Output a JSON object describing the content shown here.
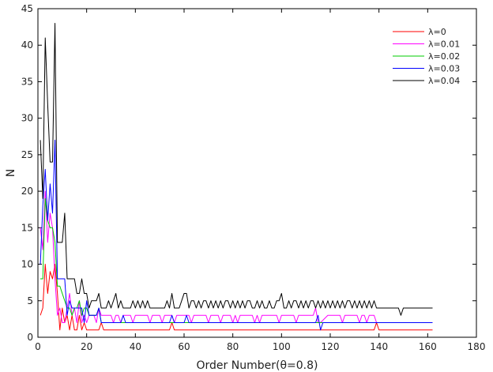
{
  "chart_data": {
    "type": "line",
    "title": "",
    "xlabel": "Order Number(θ=0.8)",
    "ylabel": "N",
    "xlim": [
      0,
      180
    ],
    "ylim": [
      0,
      45
    ],
    "xticks": [
      0,
      20,
      40,
      60,
      80,
      100,
      120,
      140,
      160,
      180
    ],
    "yticks": [
      0,
      5,
      10,
      15,
      20,
      25,
      30,
      35,
      40,
      45
    ],
    "grid": false,
    "legend_position": "top-right",
    "series": [
      {
        "name": "λ=0",
        "color": "#ff0000",
        "points": [
          [
            1,
            3
          ],
          [
            2,
            4
          ],
          [
            3,
            10
          ],
          [
            4,
            6
          ],
          [
            5,
            9
          ],
          [
            6,
            8
          ],
          [
            7,
            10
          ],
          [
            8,
            6
          ],
          [
            9,
            1
          ],
          [
            10,
            4
          ],
          [
            11,
            2
          ],
          [
            12,
            3
          ],
          [
            13,
            1
          ],
          [
            14,
            3
          ],
          [
            15,
            1
          ],
          [
            16,
            1
          ],
          [
            17,
            3
          ],
          [
            18,
            1
          ],
          [
            19,
            2
          ],
          [
            20,
            1
          ],
          [
            21,
            1
          ],
          [
            25,
            1
          ],
          [
            26,
            2
          ],
          [
            27,
            1
          ],
          [
            54,
            1
          ],
          [
            55,
            2
          ],
          [
            56,
            1
          ],
          [
            138,
            1
          ],
          [
            139,
            2
          ],
          [
            140,
            1
          ],
          [
            162,
            1
          ]
        ]
      },
      {
        "name": "λ=0.01",
        "color": "#ff00ff",
        "points": [
          [
            1,
            15
          ],
          [
            2,
            12
          ],
          [
            3,
            20
          ],
          [
            4,
            13
          ],
          [
            5,
            17
          ],
          [
            6,
            15
          ],
          [
            7,
            8
          ],
          [
            8,
            3
          ],
          [
            9,
            4
          ],
          [
            10,
            2
          ],
          [
            11,
            2
          ],
          [
            12,
            4
          ],
          [
            13,
            6
          ],
          [
            14,
            3
          ],
          [
            15,
            4
          ],
          [
            16,
            2
          ],
          [
            17,
            5
          ],
          [
            18,
            2
          ],
          [
            19,
            3
          ],
          [
            20,
            2
          ],
          [
            21,
            3
          ],
          [
            23,
            3
          ],
          [
            24,
            2
          ],
          [
            25,
            4
          ],
          [
            26,
            3
          ],
          [
            30,
            3
          ],
          [
            31,
            2
          ],
          [
            32,
            3
          ],
          [
            33,
            3
          ],
          [
            34,
            2
          ],
          [
            35,
            3
          ],
          [
            38,
            3
          ],
          [
            39,
            2
          ],
          [
            40,
            3
          ],
          [
            45,
            3
          ],
          [
            46,
            2
          ],
          [
            47,
            3
          ],
          [
            50,
            3
          ],
          [
            51,
            2
          ],
          [
            52,
            3
          ],
          [
            55,
            3
          ],
          [
            56,
            2
          ],
          [
            57,
            3
          ],
          [
            62,
            3
          ],
          [
            63,
            2
          ],
          [
            64,
            3
          ],
          [
            69,
            3
          ],
          [
            70,
            2
          ],
          [
            71,
            3
          ],
          [
            74,
            3
          ],
          [
            75,
            2
          ],
          [
            76,
            3
          ],
          [
            79,
            3
          ],
          [
            80,
            2
          ],
          [
            81,
            3
          ],
          [
            82,
            2
          ],
          [
            83,
            3
          ],
          [
            88,
            3
          ],
          [
            89,
            2
          ],
          [
            90,
            3
          ],
          [
            91,
            2
          ],
          [
            92,
            3
          ],
          [
            98,
            3
          ],
          [
            99,
            2
          ],
          [
            100,
            3
          ],
          [
            105,
            3
          ],
          [
            106,
            2
          ],
          [
            107,
            3
          ],
          [
            112,
            3
          ],
          [
            113,
            3
          ],
          [
            114,
            4
          ],
          [
            115,
            2
          ],
          [
            116,
            2
          ],
          [
            119,
            3
          ],
          [
            124,
            3
          ],
          [
            125,
            2
          ],
          [
            126,
            3
          ],
          [
            131,
            3
          ],
          [
            132,
            2
          ],
          [
            133,
            3
          ],
          [
            134,
            3
          ],
          [
            135,
            2
          ],
          [
            136,
            3
          ],
          [
            138,
            3
          ],
          [
            139,
            2
          ],
          [
            140,
            2
          ],
          [
            162,
            2
          ]
        ]
      },
      {
        "name": "λ=0.02",
        "color": "#00cc00",
        "points": [
          [
            1,
            8
          ],
          [
            2,
            8
          ],
          [
            3,
            19
          ],
          [
            4,
            16
          ],
          [
            5,
            15
          ],
          [
            6,
            15
          ],
          [
            7,
            13
          ],
          [
            8,
            7
          ],
          [
            9,
            7
          ],
          [
            10,
            6
          ],
          [
            11,
            5
          ],
          [
            12,
            4
          ],
          [
            13,
            4
          ],
          [
            14,
            3
          ],
          [
            15,
            4
          ],
          [
            16,
            4
          ],
          [
            17,
            5
          ],
          [
            18,
            3
          ],
          [
            19,
            4
          ],
          [
            20,
            4
          ],
          [
            21,
            3
          ],
          [
            22,
            3
          ],
          [
            23,
            3
          ],
          [
            24,
            3
          ],
          [
            25,
            4
          ],
          [
            26,
            2
          ],
          [
            162,
            2
          ]
        ]
      },
      {
        "name": "λ=0.03",
        "color": "#0000ff",
        "points": [
          [
            1,
            10
          ],
          [
            2,
            18
          ],
          [
            3,
            23
          ],
          [
            4,
            16
          ],
          [
            5,
            21
          ],
          [
            6,
            17
          ],
          [
            7,
            27
          ],
          [
            8,
            8
          ],
          [
            9,
            8
          ],
          [
            10,
            8
          ],
          [
            11,
            8
          ],
          [
            12,
            3
          ],
          [
            13,
            5
          ],
          [
            14,
            4
          ],
          [
            15,
            4
          ],
          [
            16,
            4
          ],
          [
            17,
            4
          ],
          [
            18,
            4
          ],
          [
            19,
            2
          ],
          [
            20,
            5
          ],
          [
            21,
            3
          ],
          [
            22,
            3
          ],
          [
            23,
            3
          ],
          [
            24,
            3
          ],
          [
            25,
            4
          ],
          [
            26,
            2
          ],
          [
            34,
            2
          ],
          [
            35,
            3
          ],
          [
            36,
            2
          ],
          [
            54,
            2
          ],
          [
            55,
            3
          ],
          [
            56,
            2
          ],
          [
            60,
            2
          ],
          [
            61,
            3
          ],
          [
            62,
            2
          ],
          [
            114,
            2
          ],
          [
            115,
            3
          ],
          [
            116,
            1
          ],
          [
            117,
            2
          ],
          [
            162,
            2
          ]
        ]
      },
      {
        "name": "λ=0.04",
        "color": "#000000",
        "points": [
          [
            1,
            27
          ],
          [
            2,
            19
          ],
          [
            3,
            41
          ],
          [
            4,
            32
          ],
          [
            5,
            24
          ],
          [
            6,
            24
          ],
          [
            7,
            43
          ],
          [
            8,
            13
          ],
          [
            9,
            13
          ],
          [
            10,
            13
          ],
          [
            11,
            17
          ],
          [
            12,
            8
          ],
          [
            13,
            8
          ],
          [
            14,
            8
          ],
          [
            15,
            8
          ],
          [
            16,
            6
          ],
          [
            17,
            6
          ],
          [
            18,
            8
          ],
          [
            19,
            6
          ],
          [
            20,
            6
          ],
          [
            21,
            4
          ],
          [
            22,
            5
          ],
          [
            23,
            5
          ],
          [
            24,
            5
          ],
          [
            25,
            6
          ],
          [
            26,
            4
          ],
          [
            28,
            4
          ],
          [
            29,
            5
          ],
          [
            30,
            4
          ],
          [
            31,
            5
          ],
          [
            32,
            6
          ],
          [
            33,
            4
          ],
          [
            34,
            5
          ],
          [
            35,
            4
          ],
          [
            38,
            4
          ],
          [
            39,
            5
          ],
          [
            40,
            4
          ],
          [
            41,
            5
          ],
          [
            42,
            4
          ],
          [
            43,
            5
          ],
          [
            44,
            4
          ],
          [
            45,
            5
          ],
          [
            46,
            4
          ],
          [
            52,
            4
          ],
          [
            53,
            5
          ],
          [
            54,
            4
          ],
          [
            55,
            6
          ],
          [
            56,
            4
          ],
          [
            58,
            4
          ],
          [
            59,
            5
          ],
          [
            60,
            6
          ],
          [
            61,
            6
          ],
          [
            62,
            4
          ],
          [
            63,
            5
          ],
          [
            64,
            5
          ],
          [
            65,
            4
          ],
          [
            66,
            5
          ],
          [
            67,
            4
          ],
          [
            68,
            5
          ],
          [
            69,
            5
          ],
          [
            70,
            4
          ],
          [
            71,
            5
          ],
          [
            72,
            4
          ],
          [
            73,
            5
          ],
          [
            74,
            4
          ],
          [
            75,
            5
          ],
          [
            76,
            4
          ],
          [
            77,
            5
          ],
          [
            78,
            5
          ],
          [
            79,
            4
          ],
          [
            80,
            5
          ],
          [
            81,
            4
          ],
          [
            82,
            5
          ],
          [
            83,
            4
          ],
          [
            84,
            5
          ],
          [
            85,
            4
          ],
          [
            86,
            5
          ],
          [
            87,
            5
          ],
          [
            88,
            4
          ],
          [
            89,
            4
          ],
          [
            90,
            5
          ],
          [
            91,
            4
          ],
          [
            92,
            5
          ],
          [
            93,
            4
          ],
          [
            94,
            4
          ],
          [
            95,
            5
          ],
          [
            96,
            4
          ],
          [
            97,
            4
          ],
          [
            98,
            5
          ],
          [
            99,
            5
          ],
          [
            100,
            6
          ],
          [
            101,
            4
          ],
          [
            102,
            4
          ],
          [
            103,
            5
          ],
          [
            104,
            4
          ],
          [
            105,
            5
          ],
          [
            106,
            5
          ],
          [
            107,
            4
          ],
          [
            108,
            5
          ],
          [
            109,
            4
          ],
          [
            110,
            5
          ],
          [
            111,
            4
          ],
          [
            112,
            5
          ],
          [
            113,
            5
          ],
          [
            114,
            4
          ],
          [
            115,
            5
          ],
          [
            116,
            4
          ],
          [
            117,
            5
          ],
          [
            118,
            4
          ],
          [
            119,
            5
          ],
          [
            120,
            4
          ],
          [
            121,
            5
          ],
          [
            122,
            4
          ],
          [
            123,
            5
          ],
          [
            124,
            4
          ],
          [
            125,
            5
          ],
          [
            126,
            4
          ],
          [
            127,
            5
          ],
          [
            128,
            5
          ],
          [
            129,
            4
          ],
          [
            130,
            5
          ],
          [
            131,
            4
          ],
          [
            132,
            5
          ],
          [
            133,
            4
          ],
          [
            134,
            5
          ],
          [
            135,
            4
          ],
          [
            136,
            5
          ],
          [
            137,
            4
          ],
          [
            138,
            5
          ],
          [
            139,
            4
          ],
          [
            140,
            4
          ],
          [
            148,
            4
          ],
          [
            149,
            3
          ],
          [
            150,
            4
          ],
          [
            162,
            4
          ]
        ]
      }
    ]
  }
}
